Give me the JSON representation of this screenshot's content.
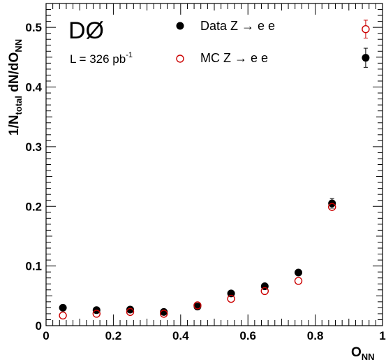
{
  "chart_data": {
    "type": "scatter",
    "experiment_label": "DØ",
    "luminosity": {
      "prefix": "L = 326 pb",
      "exponent": "-1"
    },
    "xlabel": {
      "main": "O",
      "sub": "NN"
    },
    "ylabel": {
      "prefix": "1/N",
      "sub1": "total",
      "middle": " dN/dO",
      "sub2": "NN"
    },
    "xlim": [
      0,
      1
    ],
    "ylim": [
      0,
      0.54
    ],
    "x_ticks": [
      0,
      0.2,
      0.4,
      0.6,
      0.8,
      1
    ],
    "x_tick_labels": [
      "0",
      "0.2",
      "0.4",
      "0.6",
      "0.8",
      "1"
    ],
    "y_ticks": [
      0,
      0.1,
      0.2,
      0.3,
      0.4,
      0.5
    ],
    "y_tick_labels": [
      "0",
      "0.1",
      "0.2",
      "0.3",
      "0.4",
      "0.5"
    ],
    "grid": false,
    "legend_position": "top",
    "series": [
      {
        "name": "Data Z → e e",
        "marker": "filled-circle",
        "color": "#000000",
        "x": [
          0.05,
          0.15,
          0.25,
          0.35,
          0.45,
          0.55,
          0.65,
          0.75,
          0.85,
          0.95
        ],
        "y": [
          0.03,
          0.026,
          0.027,
          0.023,
          0.032,
          0.054,
          0.066,
          0.089,
          0.205,
          0.449
        ],
        "err": [
          0.001,
          0.001,
          0.001,
          0.001,
          0.001,
          0.002,
          0.002,
          0.002,
          0.008,
          0.016
        ]
      },
      {
        "name": "MC Z → e e",
        "marker": "open-circle",
        "color": "#cc0000",
        "x": [
          0.05,
          0.15,
          0.25,
          0.35,
          0.45,
          0.55,
          0.65,
          0.75,
          0.85,
          0.95
        ],
        "y": [
          0.017,
          0.02,
          0.023,
          0.02,
          0.034,
          0.045,
          0.058,
          0.075,
          0.199,
          0.497
        ],
        "err": [
          0.001,
          0.001,
          0.001,
          0.001,
          0.001,
          0.001,
          0.001,
          0.001,
          0.004,
          0.015
        ]
      }
    ]
  }
}
